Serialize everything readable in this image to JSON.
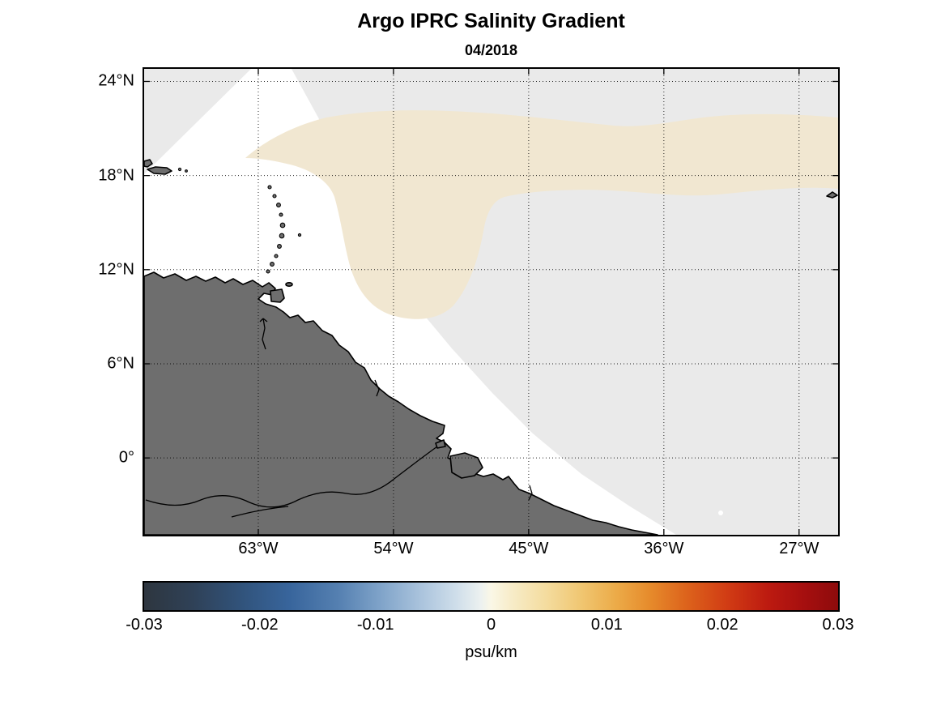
{
  "title": "Argo IPRC Salinity Gradient",
  "subtitle": "04/2018",
  "chart_data": {
    "type": "heatmap",
    "title": "Argo IPRC Salinity Gradient",
    "subtitle": "04/2018",
    "x_axis": {
      "tick_labels": [
        "63°W",
        "54°W",
        "45°W",
        "36°W",
        "27°W"
      ],
      "tick_values_deg_west": [
        63,
        54,
        45,
        36,
        27
      ],
      "range_deg_west": [
        70.6,
        24.4
      ]
    },
    "y_axis": {
      "tick_labels": [
        "24°N",
        "18°N",
        "12°N",
        "6°N",
        "0°"
      ],
      "tick_values_deg_north": [
        24,
        18,
        12,
        6,
        0
      ],
      "range_deg_north": [
        -4.9,
        24.8
      ]
    },
    "grid": "dotted",
    "colorbar": {
      "label": "psu/km",
      "tick_labels": [
        "-0.03",
        "-0.02",
        "-0.01",
        "0",
        "0.01",
        "0.02",
        "0.03"
      ],
      "tick_values": [
        -0.03,
        -0.02,
        -0.01,
        0,
        0.01,
        0.02,
        0.03
      ],
      "range": [
        -0.03,
        0.03
      ],
      "gradient_stops": [
        {
          "pos": 0.0,
          "color": "#2e363f"
        },
        {
          "pos": 0.07,
          "color": "#2f4157"
        },
        {
          "pos": 0.14,
          "color": "#31537b"
        },
        {
          "pos": 0.21,
          "color": "#38659c"
        },
        {
          "pos": 0.28,
          "color": "#5580b1"
        },
        {
          "pos": 0.34,
          "color": "#7fa3c9"
        },
        {
          "pos": 0.4,
          "color": "#abc4dd"
        },
        {
          "pos": 0.45,
          "color": "#cfdeea"
        },
        {
          "pos": 0.485,
          "color": "#ecf1f0"
        },
        {
          "pos": 0.5,
          "color": "#faf7e6"
        },
        {
          "pos": 0.53,
          "color": "#f7ecc8"
        },
        {
          "pos": 0.58,
          "color": "#f4dc9e"
        },
        {
          "pos": 0.63,
          "color": "#f0c671"
        },
        {
          "pos": 0.68,
          "color": "#ecab48"
        },
        {
          "pos": 0.73,
          "color": "#e68a2b"
        },
        {
          "pos": 0.78,
          "color": "#dd641c"
        },
        {
          "pos": 0.84,
          "color": "#d13c14"
        },
        {
          "pos": 0.9,
          "color": "#bc1a10"
        },
        {
          "pos": 0.95,
          "color": "#a60f0f"
        },
        {
          "pos": 1.0,
          "color": "#8e0b0c"
        }
      ]
    },
    "field_regions": [
      {
        "name": "near-zero",
        "approx_value_psu_per_km": -0.001,
        "color": "#eaeaea"
      },
      {
        "name": "weak-positive",
        "approx_value_psu_per_km": 0.004,
        "color": "#f1e7d1"
      },
      {
        "name": "no-data",
        "approx_value_psu_per_km": null,
        "color": "#ffffff"
      }
    ],
    "land_color": "#6e6e6e",
    "coast_color": "#000000"
  }
}
